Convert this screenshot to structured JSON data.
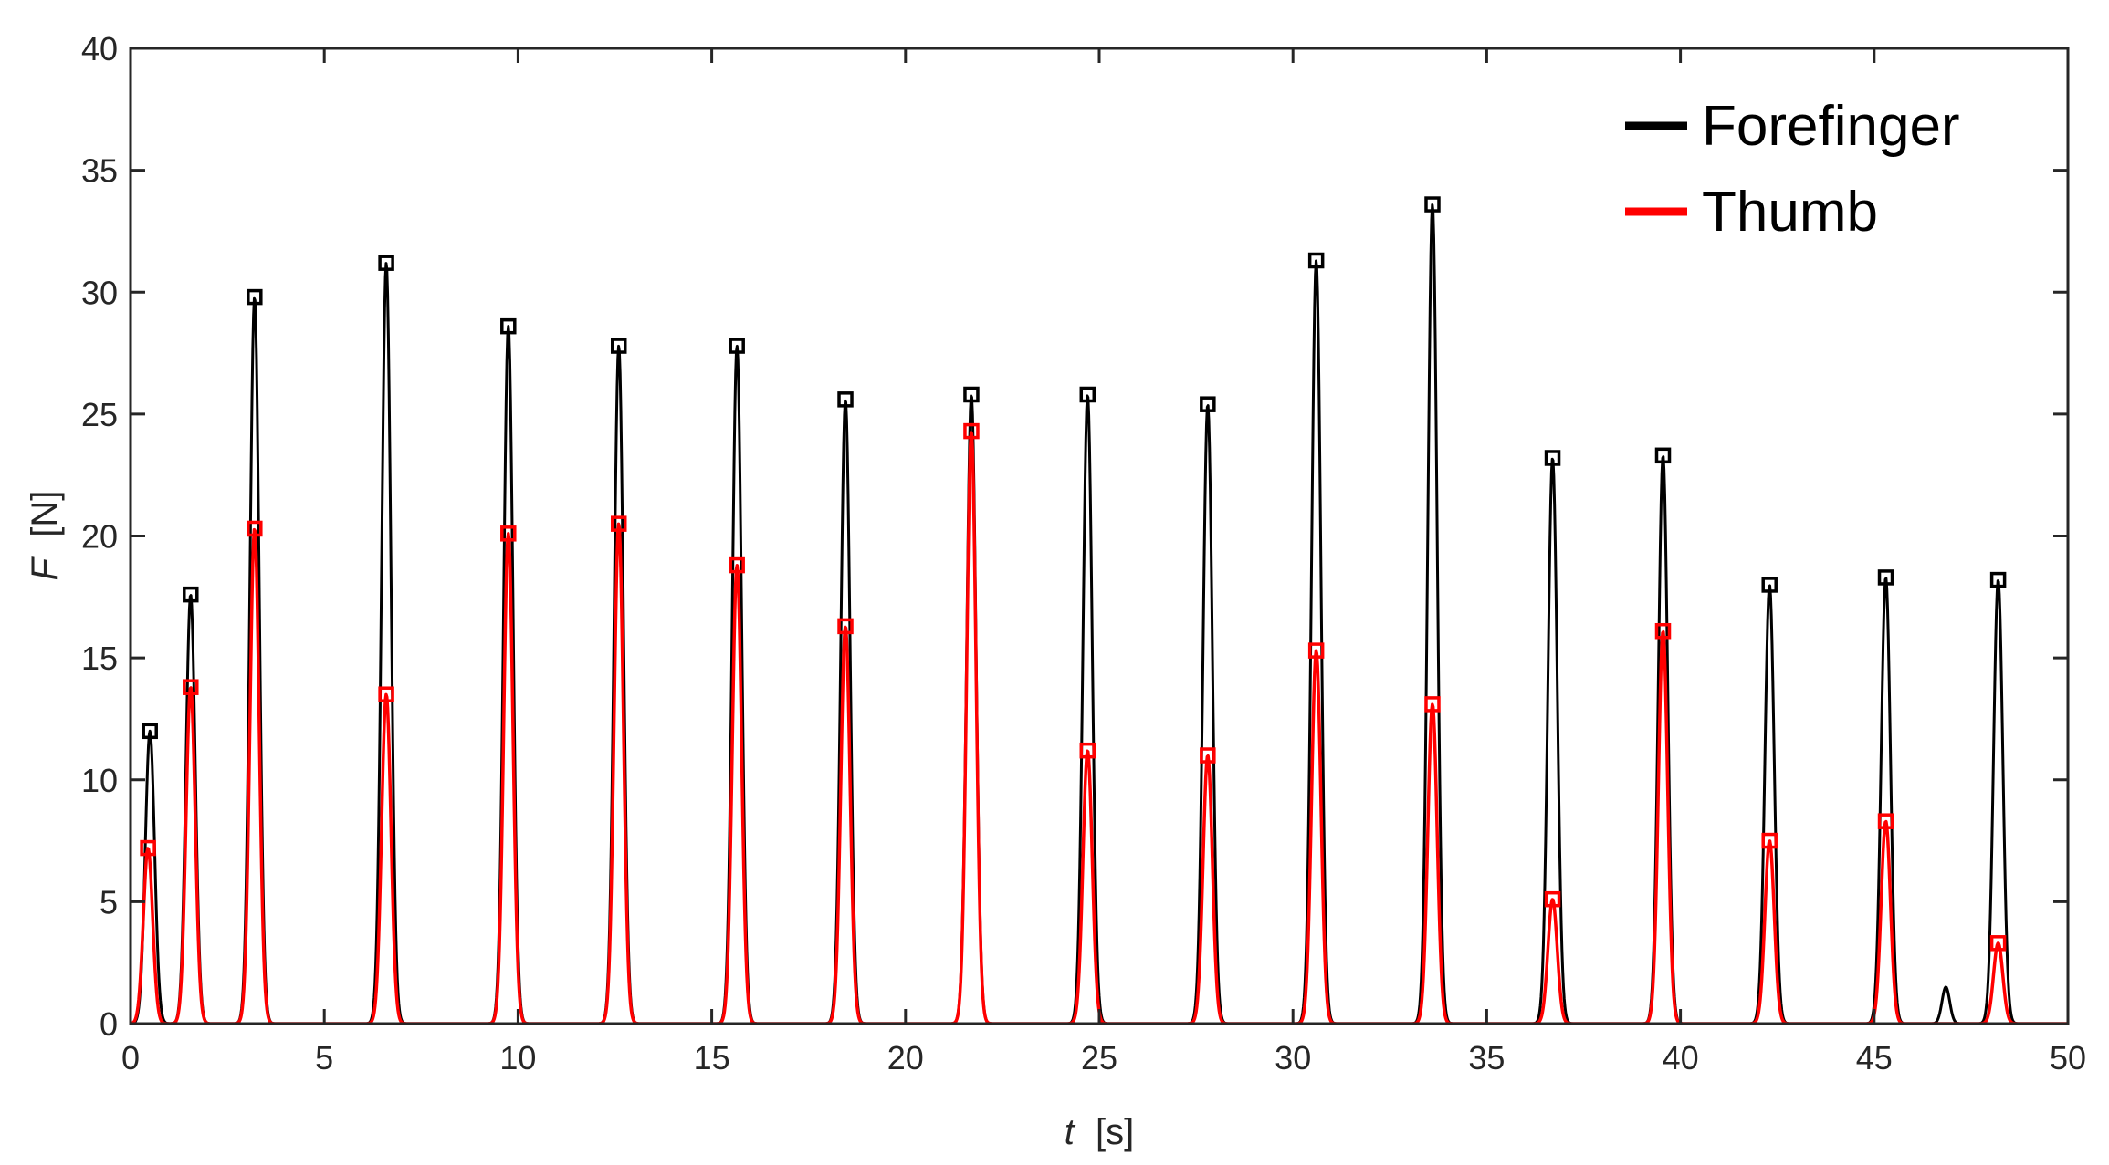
{
  "chart_data": {
    "type": "line",
    "xlabel_var": "t",
    "xlabel_unit": "[s]",
    "ylabel_var": "F",
    "ylabel_unit": "[N]",
    "xlim": [
      0,
      50
    ],
    "ylim": [
      0,
      40
    ],
    "x_ticks": [
      0,
      5,
      10,
      15,
      20,
      25,
      30,
      35,
      40,
      45,
      50
    ],
    "y_ticks": [
      0,
      5,
      10,
      15,
      20,
      25,
      30,
      35,
      40
    ],
    "grid": false,
    "legend_position": "top-right",
    "series": [
      {
        "name": "Forefinger",
        "color": "#000000",
        "marker": "square",
        "peaks": [
          {
            "t": 0.5,
            "f": 12.0
          },
          {
            "t": 1.55,
            "f": 17.6
          },
          {
            "t": 3.2,
            "f": 29.8
          },
          {
            "t": 6.6,
            "f": 31.2
          },
          {
            "t": 9.75,
            "f": 28.6
          },
          {
            "t": 12.6,
            "f": 27.8
          },
          {
            "t": 15.65,
            "f": 27.8
          },
          {
            "t": 18.45,
            "f": 25.6
          },
          {
            "t": 21.7,
            "f": 25.8
          },
          {
            "t": 24.7,
            "f": 25.8
          },
          {
            "t": 27.8,
            "f": 25.4
          },
          {
            "t": 30.6,
            "f": 31.3
          },
          {
            "t": 33.6,
            "f": 33.6
          },
          {
            "t": 36.7,
            "f": 23.2
          },
          {
            "t": 39.55,
            "f": 23.3
          },
          {
            "t": 42.3,
            "f": 18.0
          },
          {
            "t": 45.3,
            "f": 18.3
          },
          {
            "t": 48.2,
            "f": 18.2
          }
        ],
        "extra_bumps": [
          {
            "t": 46.85,
            "f": 1.5
          }
        ]
      },
      {
        "name": "Thumb",
        "color": "#ff0000",
        "marker": "square",
        "peaks": [
          {
            "t": 0.45,
            "f": 7.2
          },
          {
            "t": 1.55,
            "f": 13.8
          },
          {
            "t": 3.2,
            "f": 20.3
          },
          {
            "t": 6.6,
            "f": 13.5
          },
          {
            "t": 9.75,
            "f": 20.1
          },
          {
            "t": 12.6,
            "f": 20.5
          },
          {
            "t": 15.65,
            "f": 18.8
          },
          {
            "t": 18.45,
            "f": 16.3
          },
          {
            "t": 21.7,
            "f": 24.3
          },
          {
            "t": 24.7,
            "f": 11.2
          },
          {
            "t": 27.8,
            "f": 11.0
          },
          {
            "t": 30.6,
            "f": 15.3
          },
          {
            "t": 33.6,
            "f": 13.1
          },
          {
            "t": 36.7,
            "f": 5.1
          },
          {
            "t": 39.55,
            "f": 16.1
          },
          {
            "t": 42.3,
            "f": 7.5
          },
          {
            "t": 45.3,
            "f": 8.3
          },
          {
            "t": 48.2,
            "f": 3.3
          }
        ]
      }
    ]
  }
}
